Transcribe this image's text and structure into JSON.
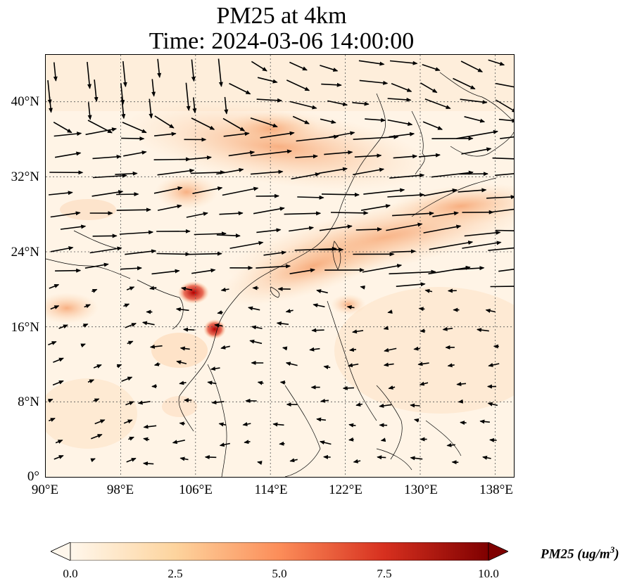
{
  "title": {
    "line1": "PM25 at 4km",
    "line2": "Time: 2024-03-06 14:00:00"
  },
  "map": {
    "projection": "PlateCarree",
    "lon_range": [
      90,
      140
    ],
    "lat_range": [
      0,
      45
    ],
    "gridlines": true,
    "x_ticks": [
      "90°E",
      "98°E",
      "106°E",
      "114°E",
      "122°E",
      "130°E",
      "138°E"
    ],
    "y_ticks": [
      "40°N",
      "32°N",
      "24°N",
      "16°N",
      "8°N",
      "0°"
    ],
    "vector_field": "wind-arrows"
  },
  "colorbar": {
    "colormap": "OrRd",
    "min": 0.0,
    "max": 10.0,
    "ticks": [
      "0.0",
      "2.5",
      "5.0",
      "7.5",
      "10.0"
    ],
    "label_main": "PM25 (ug/m",
    "label_sup": "3",
    "label_end": ")",
    "extend": "both"
  },
  "colors": {
    "low": "#fff7ec",
    "mid": "#fc8d59",
    "high": "#7f0000"
  }
}
